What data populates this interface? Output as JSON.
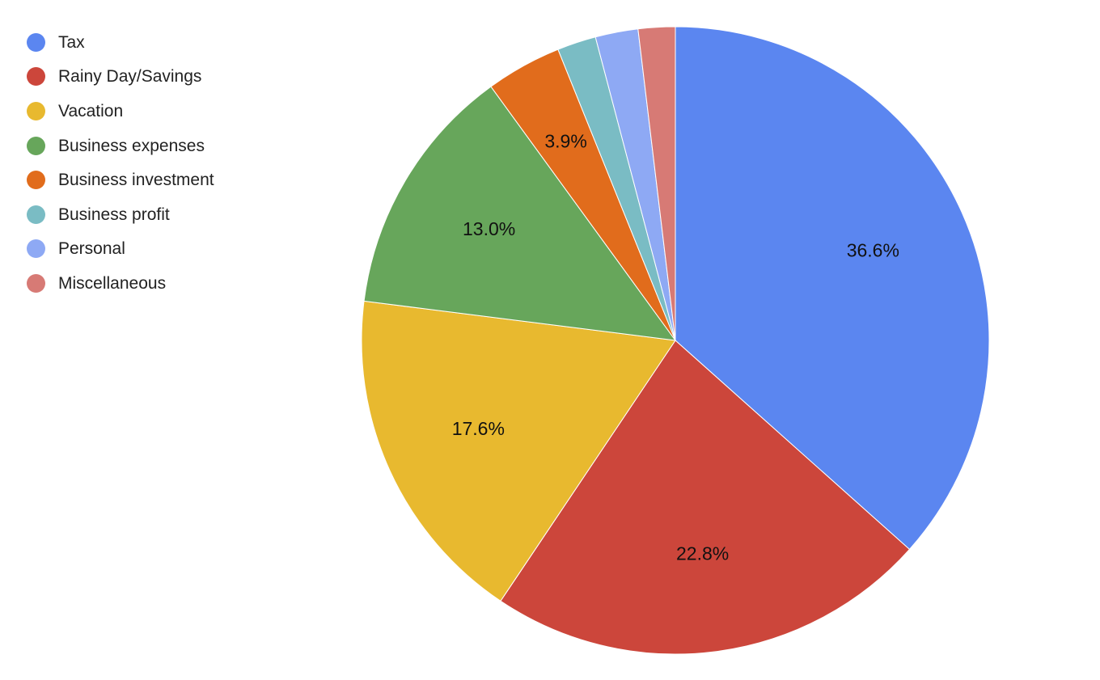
{
  "chart_data": {
    "type": "pie",
    "title": "",
    "legend_position": "top-left",
    "start_angle_deg": 0,
    "direction": "clockwise",
    "slices": [
      {
        "name": "Tax",
        "value": 36.6,
        "label": "36.6%",
        "color": "#5b86f0"
      },
      {
        "name": "Rainy Day/Savings",
        "value": 22.8,
        "label": "22.8%",
        "color": "#cc463b"
      },
      {
        "name": "Vacation",
        "value": 17.6,
        "label": "17.6%",
        "color": "#e8b92f"
      },
      {
        "name": "Business expenses",
        "value": 13.0,
        "label": "13.0%",
        "color": "#67a65b"
      },
      {
        "name": "Business investment",
        "value": 3.9,
        "label": "3.9%",
        "color": "#e16c1c"
      },
      {
        "name": "Business profit",
        "value": 2.0,
        "label": "",
        "color": "#7abcc4"
      },
      {
        "name": "Personal",
        "value": 2.2,
        "label": "",
        "color": "#8ea9f4"
      },
      {
        "name": "Miscellaneous",
        "value": 1.9,
        "label": "",
        "color": "#d77a75"
      }
    ]
  }
}
